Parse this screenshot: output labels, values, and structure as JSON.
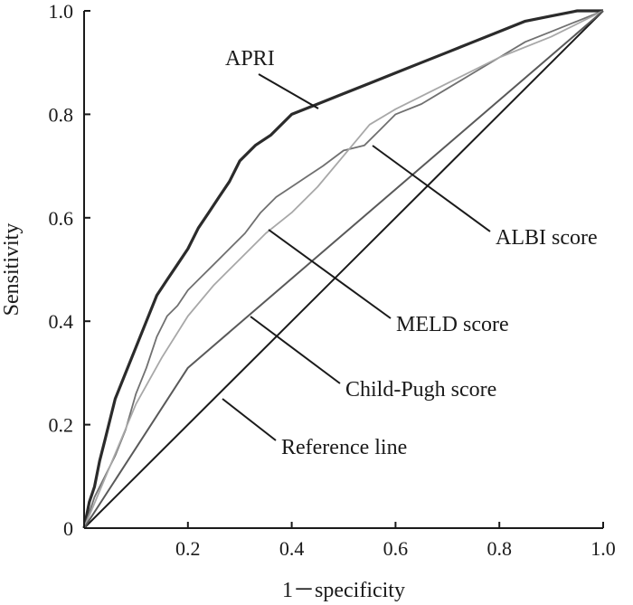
{
  "chart_data": {
    "type": "line",
    "xlabel": "1－specificity",
    "ylabel": "Sensitivity",
    "xlim": [
      0,
      1
    ],
    "ylim": [
      0,
      1
    ],
    "x_ticks": [
      "0.2",
      "0.4",
      "0.6",
      "0.8",
      "1.0"
    ],
    "y_ticks": [
      "0",
      "0.2",
      "0.4",
      "0.6",
      "0.8",
      "1.0"
    ],
    "grid": false,
    "legend": "none",
    "series": [
      {
        "name": "APRI",
        "color": "#2b2b2b",
        "x": [
          0,
          0.01,
          0.02,
          0.03,
          0.04,
          0.05,
          0.06,
          0.08,
          0.1,
          0.12,
          0.14,
          0.16,
          0.18,
          0.2,
          0.22,
          0.24,
          0.26,
          0.28,
          0.3,
          0.33,
          0.36,
          0.4,
          0.45,
          0.5,
          0.55,
          0.6,
          0.65,
          0.7,
          0.75,
          0.8,
          0.85,
          0.9,
          0.95,
          1.0
        ],
        "y": [
          0,
          0.05,
          0.08,
          0.13,
          0.17,
          0.21,
          0.25,
          0.3,
          0.35,
          0.4,
          0.45,
          0.48,
          0.51,
          0.54,
          0.58,
          0.61,
          0.64,
          0.67,
          0.71,
          0.74,
          0.76,
          0.8,
          0.82,
          0.84,
          0.86,
          0.88,
          0.9,
          0.92,
          0.94,
          0.96,
          0.98,
          0.99,
          1.0,
          1.0
        ]
      },
      {
        "name": "ALBI score",
        "color": "#707070",
        "x": [
          0,
          0.02,
          0.04,
          0.06,
          0.08,
          0.1,
          0.12,
          0.14,
          0.16,
          0.18,
          0.2,
          0.22,
          0.25,
          0.28,
          0.31,
          0.34,
          0.37,
          0.4,
          0.43,
          0.46,
          0.5,
          0.54,
          0.57,
          0.6,
          0.65,
          0.7,
          0.75,
          0.8,
          0.85,
          0.9,
          0.95,
          1.0
        ],
        "y": [
          0,
          0.06,
          0.1,
          0.14,
          0.19,
          0.26,
          0.31,
          0.37,
          0.41,
          0.43,
          0.46,
          0.48,
          0.51,
          0.54,
          0.57,
          0.61,
          0.64,
          0.66,
          0.68,
          0.7,
          0.73,
          0.74,
          0.77,
          0.8,
          0.82,
          0.85,
          0.88,
          0.91,
          0.94,
          0.96,
          0.98,
          1.0
        ]
      },
      {
        "name": "MELD score",
        "color": "#a8a8a8",
        "x": [
          0,
          0.05,
          0.1,
          0.15,
          0.2,
          0.25,
          0.3,
          0.35,
          0.4,
          0.45,
          0.5,
          0.55,
          0.6,
          0.7,
          0.8,
          0.9,
          1.0
        ],
        "y": [
          0,
          0.12,
          0.24,
          0.33,
          0.41,
          0.47,
          0.52,
          0.57,
          0.61,
          0.66,
          0.72,
          0.78,
          0.81,
          0.86,
          0.91,
          0.95,
          1.0
        ]
      },
      {
        "name": "Child-Pugh score",
        "color": "#595959",
        "x": [
          0,
          0.2,
          1.0
        ],
        "y": [
          0,
          0.31,
          1.0
        ]
      },
      {
        "name": "Reference line",
        "color": "#1a1a1a",
        "x": [
          0,
          1.0
        ],
        "y": [
          0,
          1.0
        ]
      }
    ],
    "annotations": [
      {
        "text": "APRI"
      },
      {
        "text": "ALBI score"
      },
      {
        "text": "MELD score"
      },
      {
        "text": "Child-Pugh score"
      },
      {
        "text": "Reference line"
      }
    ]
  }
}
